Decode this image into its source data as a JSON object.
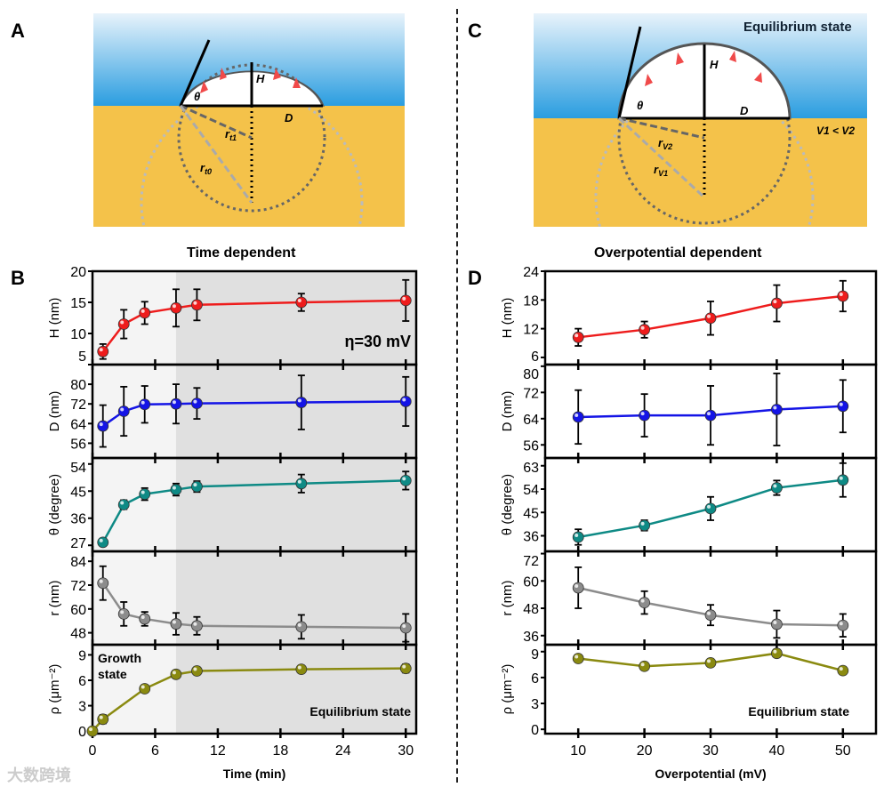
{
  "panels": {
    "A": "A",
    "B": "B",
    "C": "C",
    "D": "D"
  },
  "titles": {
    "left": "Time dependent",
    "right": "Overpotential dependent"
  },
  "schematic_A": {
    "H": "H",
    "D": "D",
    "theta": "θ",
    "rt1": "r",
    "rt1_sub": "t1",
    "rt0": "r",
    "rt0_sub": "t0"
  },
  "schematic_C": {
    "state": "Equilibrium state",
    "H": "H",
    "D": "D",
    "theta": "θ",
    "rv2": "r",
    "rv2_sub": "V2",
    "rv1": "r",
    "rv1_sub": "V1",
    "cond": "V1 < V2"
  },
  "watermark": "大数跨境",
  "colors": {
    "H": "#ee1c1c",
    "D": "#1414e6",
    "theta": "#0e8a85",
    "r": "#8c8c8c",
    "rho": "#8a8a10"
  },
  "chart_data": [
    {
      "type": "line",
      "name": "B",
      "title": "Time dependent",
      "xlabel": "Time (min)",
      "xlim": [
        0,
        31
      ],
      "xticks": [
        0,
        6,
        12,
        18,
        24,
        30
      ],
      "annotations": {
        "eta": "η=30 mV",
        "growth1": "Growth",
        "growth2": "state",
        "equil": "Equilibrium state"
      },
      "shade_from": 8,
      "subplots": [
        {
          "key": "H",
          "ylabel": "H (nm)",
          "ylim": [
            5,
            20
          ],
          "yticks": [
            5,
            10,
            15,
            20
          ],
          "x": [
            1,
            3,
            5,
            8,
            10,
            20,
            30
          ],
          "y": [
            7.1,
            11.5,
            13.3,
            14.1,
            14.6,
            15.0,
            15.3
          ],
          "err": [
            1.2,
            2.3,
            1.8,
            3.0,
            2.5,
            1.4,
            3.3
          ]
        },
        {
          "key": "D",
          "ylabel": "D (nm)",
          "ylim": [
            50,
            88
          ],
          "yticks": [
            56,
            64,
            72,
            80
          ],
          "x": [
            1,
            3,
            5,
            8,
            10,
            20,
            30
          ],
          "y": [
            63,
            69,
            71.8,
            72,
            72.2,
            72.6,
            73
          ],
          "err": [
            8.5,
            10,
            7.5,
            8,
            6.3,
            11,
            10
          ]
        },
        {
          "key": "theta",
          "ylabel": "θ (degree)",
          "ylim": [
            25,
            56
          ],
          "yticks": [
            27,
            36,
            45,
            54
          ],
          "x": [
            1,
            3,
            5,
            8,
            10,
            20,
            30
          ],
          "y": [
            28,
            40.5,
            44,
            45.5,
            46.5,
            47.5,
            48.5
          ],
          "err": [
            0.6,
            1.5,
            2,
            2,
            1.8,
            3,
            3
          ]
        },
        {
          "key": "r",
          "ylabel": "r (nm)",
          "ylim": [
            42,
            89
          ],
          "yticks": [
            48,
            60,
            72,
            84
          ],
          "x": [
            1,
            3,
            5,
            8,
            10,
            20,
            30
          ],
          "y": [
            73,
            57.5,
            55,
            52.5,
            51.5,
            51,
            50.5
          ],
          "err": [
            8.5,
            6,
            3.5,
            5.5,
            4.5,
            6,
            7
          ]
        },
        {
          "key": "rho",
          "ylabel": "ρ (μm⁻²)",
          "ylim": [
            -0.3,
            10.2
          ],
          "yticks": [
            0,
            3,
            6,
            9
          ],
          "x": [
            0,
            1,
            5,
            8,
            10,
            20,
            30
          ],
          "y": [
            0,
            1.4,
            5,
            6.7,
            7.1,
            7.3,
            7.4
          ],
          "err": [
            0,
            0.5,
            0.4,
            0.4,
            0.4,
            0.4,
            0.5
          ]
        }
      ]
    },
    {
      "type": "line",
      "name": "D",
      "title": "Overpotential dependent",
      "xlabel": "Overpotential (mV)",
      "xlim": [
        5,
        55
      ],
      "xticks": [
        10,
        20,
        30,
        40,
        50
      ],
      "annotations": {
        "equil": "Equilibrium state"
      },
      "subplots": [
        {
          "key": "H",
          "ylabel": "H (nm)",
          "ylim": [
            4.5,
            24
          ],
          "yticks": [
            6,
            12,
            18,
            24
          ],
          "x": [
            10,
            20,
            30,
            40,
            50
          ],
          "y": [
            10.2,
            11.8,
            14.2,
            17.3,
            18.8
          ],
          "err": [
            1.8,
            1.7,
            3.5,
            3.8,
            3.2
          ]
        },
        {
          "key": "D",
          "ylabel": "D (nm)",
          "ylim": [
            52,
            80.5
          ],
          "yticks": [
            56,
            64,
            72,
            80
          ],
          "x": [
            10,
            20,
            30,
            40,
            50
          ],
          "y": [
            64.5,
            65,
            65,
            66.8,
            67.8
          ],
          "err": [
            8.2,
            6.5,
            9,
            11,
            8
          ]
        },
        {
          "key": "theta",
          "ylabel": "θ (degree)",
          "ylim": [
            30,
            66
          ],
          "yticks": [
            36,
            45,
            54,
            63
          ],
          "x": [
            10,
            20,
            30,
            40,
            50
          ],
          "y": [
            35.5,
            40,
            46.5,
            54.5,
            57.5
          ],
          "err": [
            3,
            2,
            4.5,
            2.8,
            6.5
          ]
        },
        {
          "key": "r",
          "ylabel": "r (nm)",
          "ylim": [
            32,
            73
          ],
          "yticks": [
            36,
            48,
            60,
            72
          ],
          "x": [
            10,
            20,
            30,
            40,
            50
          ],
          "y": [
            57,
            50.5,
            45,
            41,
            40.5
          ],
          "err": [
            9,
            5,
            4.5,
            6,
            5
          ]
        },
        {
          "key": "rho",
          "ylabel": "ρ (μm⁻²)",
          "ylim": [
            -0.5,
            9.8
          ],
          "yticks": [
            0,
            3,
            6,
            9
          ],
          "x": [
            10,
            20,
            30,
            40,
            50
          ],
          "y": [
            8.2,
            7.3,
            7.7,
            8.8,
            6.8
          ],
          "err": [
            0.4,
            0.4,
            0.4,
            0.4,
            0.4
          ]
        }
      ]
    }
  ]
}
